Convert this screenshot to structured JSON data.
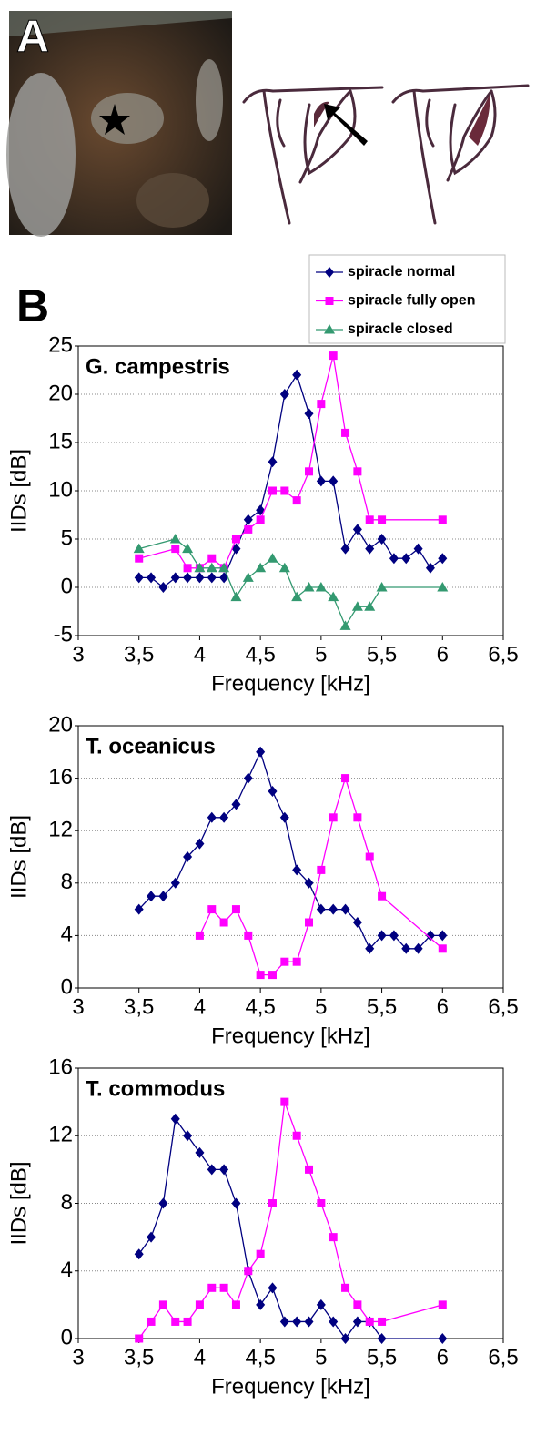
{
  "panel_labels": [
    "A",
    "B"
  ],
  "chart_data": [
    {
      "type": "line",
      "title": "G. campestris",
      "xlabel": "Frequency [kHz]",
      "ylabel": "IIDs [dB]",
      "xlim": [
        3,
        6.5
      ],
      "xticks": [
        3,
        {
          "value": 3.5,
          "label": "3,5"
        },
        4,
        {
          "value": 4.5,
          "label": "4,5"
        },
        5,
        {
          "value": 5.5,
          "label": "5,5"
        },
        6,
        {
          "value": 6.5,
          "label": "6,5"
        }
      ],
      "ylim": [
        -5,
        25
      ],
      "yticks": [
        -5,
        0,
        5,
        10,
        15,
        20,
        25
      ],
      "grid": true,
      "legend": "top-right",
      "series": [
        {
          "name": "spiracle normal",
          "color": "#000080",
          "marker": "diamond",
          "x": [
            3.5,
            3.6,
            3.7,
            3.8,
            3.9,
            4.0,
            4.1,
            4.2,
            4.3,
            4.4,
            4.5,
            4.6,
            4.7,
            4.8,
            4.9,
            5.0,
            5.1,
            5.2,
            5.3,
            5.4,
            5.5,
            5.6,
            5.7,
            5.8,
            5.9,
            6.0
          ],
          "values": [
            1,
            1,
            0,
            1,
            1,
            1,
            1,
            1,
            4,
            7,
            8,
            13,
            20,
            22,
            18,
            11,
            11,
            4,
            6,
            4,
            5,
            3,
            3,
            4,
            2,
            3
          ]
        },
        {
          "name": "spiracle fully open",
          "color": "#ff00ff",
          "marker": "square",
          "x": [
            3.5,
            3.8,
            3.9,
            4.0,
            4.1,
            4.2,
            4.3,
            4.4,
            4.5,
            4.6,
            4.7,
            4.8,
            4.9,
            5.0,
            5.1,
            5.2,
            5.3,
            5.4,
            5.5,
            6.0
          ],
          "values": [
            3,
            4,
            2,
            2,
            3,
            2,
            5,
            6,
            7,
            10,
            10,
            9,
            12,
            19,
            24,
            16,
            12,
            7,
            7,
            7
          ]
        },
        {
          "name": "spiracle closed",
          "color": "#339970",
          "marker": "triangle",
          "x": [
            3.5,
            3.8,
            3.9,
            4.0,
            4.1,
            4.2,
            4.3,
            4.4,
            4.5,
            4.6,
            4.7,
            4.8,
            4.9,
            5.0,
            5.1,
            5.2,
            5.3,
            5.4,
            5.5,
            6.0
          ],
          "values": [
            4,
            5,
            4,
            2,
            2,
            2,
            -1,
            1,
            2,
            3,
            2,
            -1,
            0,
            0,
            -1,
            -4,
            -2,
            -2,
            0,
            0
          ]
        }
      ]
    },
    {
      "type": "line",
      "title": "T. oceanicus",
      "xlabel": "Frequency [kHz]",
      "ylabel": "IIDs [dB]",
      "xlim": [
        3,
        6.5
      ],
      "xticks": [
        3,
        {
          "value": 3.5,
          "label": "3,5"
        },
        4,
        {
          "value": 4.5,
          "label": "4,5"
        },
        5,
        {
          "value": 5.5,
          "label": "5,5"
        },
        6,
        {
          "value": 6.5,
          "label": "6,5"
        }
      ],
      "ylim": [
        0,
        20
      ],
      "yticks": [
        0,
        4,
        8,
        12,
        16,
        20
      ],
      "grid": true,
      "series": [
        {
          "color": "#000080",
          "marker": "diamond",
          "x": [
            3.5,
            3.6,
            3.7,
            3.8,
            3.9,
            4.0,
            4.1,
            4.2,
            4.3,
            4.4,
            4.5,
            4.6,
            4.7,
            4.8,
            4.9,
            5.0,
            5.1,
            5.2,
            5.3,
            5.4,
            5.5,
            5.6,
            5.7,
            5.8,
            5.9,
            6.0
          ],
          "values": [
            6,
            7,
            7,
            8,
            10,
            11,
            13,
            13,
            14,
            16,
            18,
            15,
            13,
            9,
            8,
            6,
            6,
            6,
            5,
            3,
            4,
            4,
            3,
            3,
            4,
            4
          ]
        },
        {
          "color": "#ff00ff",
          "marker": "square",
          "x": [
            4.0,
            4.1,
            4.2,
            4.3,
            4.4,
            4.5,
            4.6,
            4.7,
            4.8,
            4.9,
            5.0,
            5.1,
            5.2,
            5.3,
            5.4,
            5.5,
            6.0
          ],
          "values": [
            4,
            6,
            5,
            6,
            4,
            1,
            1,
            2,
            2,
            5,
            9,
            13,
            16,
            13,
            10,
            7,
            3
          ]
        }
      ]
    },
    {
      "type": "line",
      "title": "T. commodus",
      "xlabel": "Frequency [kHz]",
      "ylabel": "IIDs [dB]",
      "xlim": [
        3,
        6.5
      ],
      "xticks": [
        3,
        {
          "value": 3.5,
          "label": "3,5"
        },
        4,
        {
          "value": 4.5,
          "label": "4,5"
        },
        5,
        {
          "value": 5.5,
          "label": "5,5"
        },
        6,
        {
          "value": 6.5,
          "label": "6,5"
        }
      ],
      "ylim": [
        0,
        16
      ],
      "yticks": [
        0,
        4,
        8,
        12,
        16
      ],
      "grid": true,
      "series": [
        {
          "color": "#000080",
          "marker": "diamond",
          "x": [
            3.5,
            3.6,
            3.7,
            3.8,
            3.9,
            4.0,
            4.1,
            4.2,
            4.3,
            4.4,
            4.5,
            4.6,
            4.7,
            4.8,
            4.9,
            5.0,
            5.1,
            5.2,
            5.3,
            5.4,
            5.5,
            6.0
          ],
          "values": [
            5,
            6,
            8,
            13,
            12,
            11,
            10,
            10,
            8,
            4,
            2,
            3,
            1,
            1,
            1,
            2,
            1,
            0,
            1,
            1,
            0,
            0
          ]
        },
        {
          "color": "#ff00ff",
          "marker": "square",
          "x": [
            3.5,
            3.6,
            3.7,
            3.8,
            3.9,
            4.0,
            4.1,
            4.2,
            4.3,
            4.4,
            4.5,
            4.6,
            4.7,
            4.8,
            4.9,
            5.0,
            5.1,
            5.2,
            5.3,
            5.4,
            5.5,
            6.0
          ],
          "values": [
            0,
            1,
            2,
            1,
            1,
            2,
            3,
            3,
            2,
            4,
            5,
            8,
            14,
            12,
            10,
            8,
            6,
            3,
            2,
            1,
            1,
            2
          ]
        }
      ]
    }
  ]
}
